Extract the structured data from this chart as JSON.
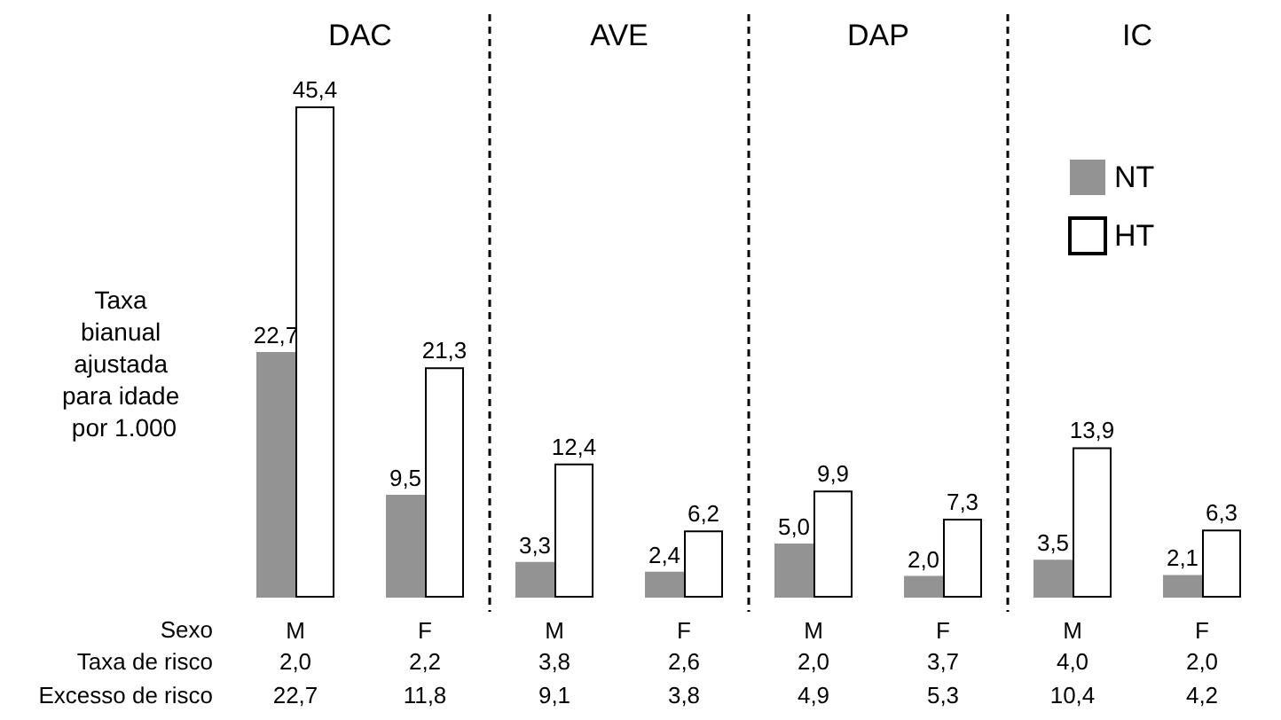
{
  "chart_data": {
    "type": "bar",
    "ylabel": "Taxa bianual ajustada para idade por 1.000",
    "categories": [
      "M",
      "F",
      "M",
      "F",
      "M",
      "F",
      "M",
      "F"
    ],
    "series": [
      {
        "name": "NT",
        "color": "#939393",
        "values": [
          22.7,
          9.5,
          3.3,
          2.4,
          5.0,
          2.0,
          3.5,
          2.1
        ],
        "value_labels": [
          "22,7",
          "9,5",
          "3,3",
          "2,4",
          "5,0",
          "2,0",
          "3,5",
          "2,1"
        ]
      },
      {
        "name": "HT",
        "color": "#ffffff",
        "values": [
          45.4,
          21.3,
          12.4,
          6.2,
          9.9,
          7.3,
          13.9,
          6.3
        ],
        "value_labels": [
          "45,4",
          "21,3",
          "12,4",
          "6,2",
          "9,9",
          "7,3",
          "13,9",
          "6,3"
        ]
      }
    ],
    "annotations": [
      "DAC",
      "AVE",
      "DAP",
      "IC",
      "Sexo",
      "Taxa de risco",
      "2,0",
      "2,2",
      "3,8",
      "2,6",
      "2,0",
      "3,7",
      "4,0",
      "2,0",
      "Excesso de risco",
      "22,7",
      "11,8",
      "9,1",
      "3,8",
      "4,9",
      "5,3",
      "10,4",
      "4,2"
    ],
    "legend": "top right",
    "tick_labels": "x"
  }
}
